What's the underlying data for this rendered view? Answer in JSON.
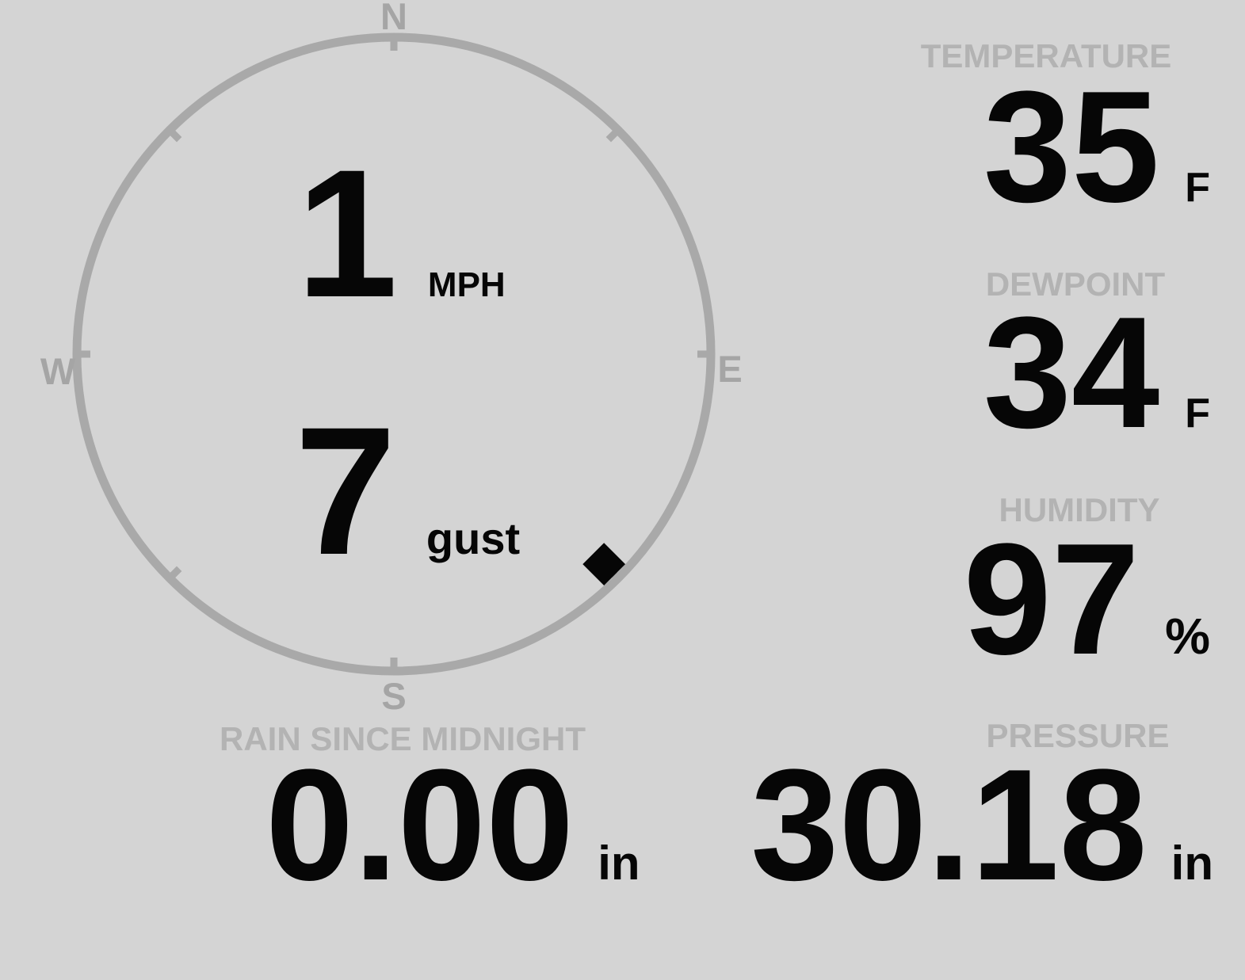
{
  "colors": {
    "background": "#d4d4d4",
    "gauge_ring": "#a9a9a9",
    "compass_letter": "#a5a5a5",
    "section_label": "#b3b3b3",
    "value_text": "#060606",
    "direction_marker": "#060606"
  },
  "wind": {
    "speed": "1",
    "speed_unit": "MPH",
    "gust": "7",
    "gust_label": "gust",
    "direction_deg": 135,
    "compass_labels": {
      "n": "N",
      "e": "E",
      "s": "S",
      "w": "W"
    }
  },
  "metrics": {
    "temperature": {
      "label": "TEMPERATURE",
      "value": "35",
      "unit": "F"
    },
    "dewpoint": {
      "label": "DEWPOINT",
      "value": "34",
      "unit": "F"
    },
    "humidity": {
      "label": "HUMIDITY",
      "value": "97",
      "unit": "%"
    },
    "rain": {
      "label": "RAIN SINCE MIDNIGHT",
      "value": "0.00",
      "unit": "in"
    },
    "pressure": {
      "label": "PRESSURE",
      "value": "30.18",
      "unit": "in"
    }
  }
}
